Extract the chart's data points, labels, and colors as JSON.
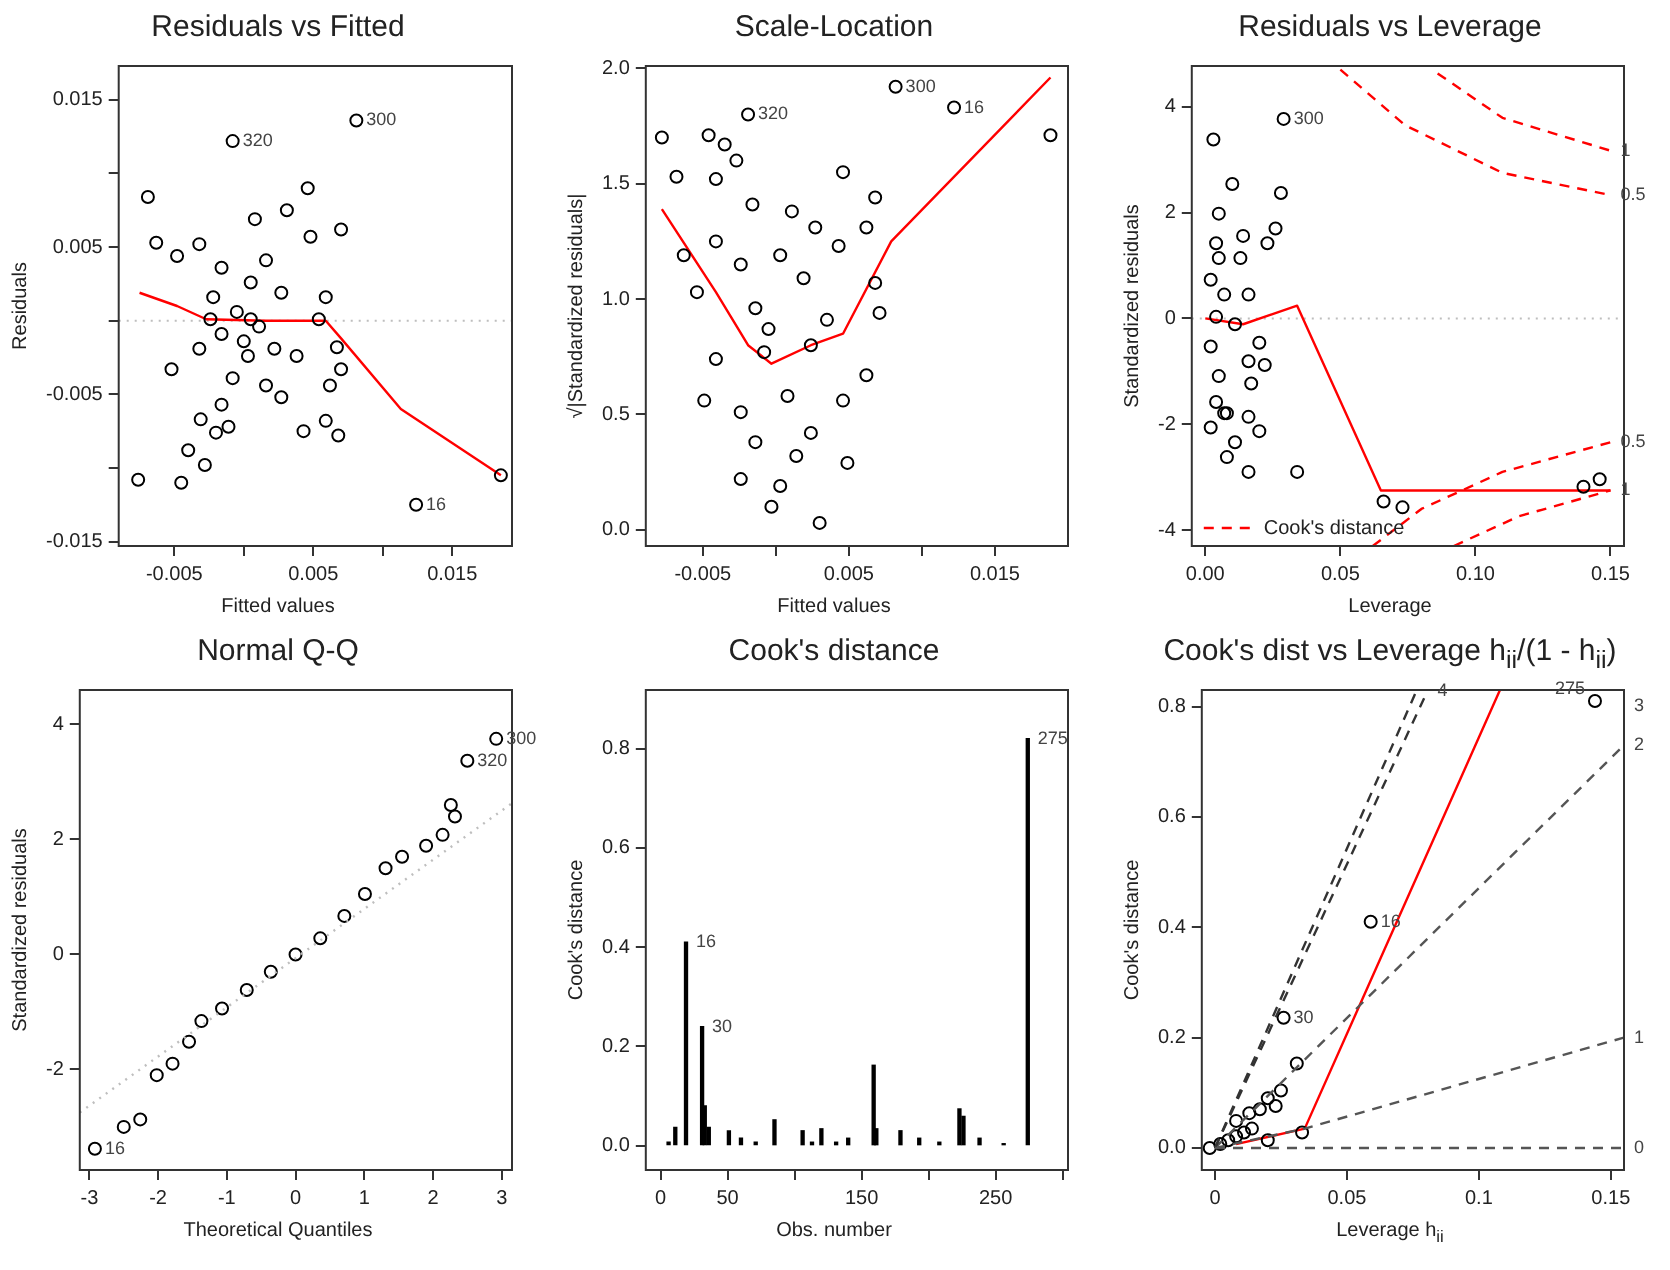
{
  "chart_data": [
    {
      "type": "scatter",
      "title": "Residuals vs Fitted",
      "xlabel": "Fitted values",
      "ylabel": "Residuals",
      "marker": "circle",
      "legend": false,
      "grid": false,
      "xlim": [
        -0.009,
        0.0193
      ],
      "xticks": [
        -0.005,
        {
          "value": 0,
          "label": null
        },
        0.005,
        {
          "value": 0.01,
          "label": null
        },
        0.015
      ],
      "ylim": [
        -0.0153,
        0.0173
      ],
      "yticks": [
        -0.015,
        {
          "value": -0.01,
          "label": null
        },
        -0.005,
        {
          "value": 0,
          "label": null
        },
        0.005,
        {
          "value": 0.01,
          "label": null
        },
        0.015
      ],
      "series": [
        {
          "color": "#000000",
          "x": [
            0.0081,
            -0.0008,
            -0.0069,
            0.0046,
            -0.0063,
            0.0031,
            0.0008,
            0.007,
            -0.0048,
            -0.0032,
            0.0048,
            -0.0016,
            0.0016,
            0.0005,
            -0.0022,
            0.0027,
            0.0059,
            -0.0005,
            0.0011,
            -0.0016,
            0.0054,
            -0.0032,
            0.0003,
            0.0022,
            0.0038,
            0.0067,
            -0.0052,
            -0.0008,
            0.0016,
            0.007,
            0.0062,
            -0.0016,
            0.0027,
            -0.0031,
            -0.0011,
            0.0043,
            0.0059,
            0.0068,
            -0.002,
            -0.004,
            -0.0028,
            -0.0045,
            -0.0076,
            0.0124,
            0.0185,
            0.0005,
            0,
            -0.0024
          ],
          "values": [
            0.0136,
            0.0122,
            0.0084,
            0.009,
            0.0053,
            0.0075,
            0.0069,
            0.0062,
            0.0044,
            0.0052,
            0.0057,
            0.0036,
            0.0041,
            0.0026,
            0.0016,
            0.0019,
            0.0016,
            0.0006,
            -0.0004,
            -0.0009,
            0.0001,
            -0.0019,
            -0.0024,
            -0.0019,
            -0.0024,
            -0.0018,
            -0.0033,
            -0.0039,
            -0.0044,
            -0.0033,
            -0.0044,
            -0.0057,
            -0.0052,
            -0.0067,
            -0.0072,
            -0.0075,
            -0.0068,
            -0.0078,
            -0.0076,
            -0.0088,
            -0.0098,
            -0.011,
            -0.0108,
            -0.0125,
            -0.0105,
            0.0001,
            -0.0014,
            0.0001
          ]
        },
        {
          "type": "line",
          "color": "#ff0000",
          "line_style": "solid",
          "marker": "none",
          "x": [
            -0.0075,
            -0.0048,
            -0.0027,
            0.0016,
            0.0059,
            0.007,
            0.0113,
            0.0185
          ],
          "values": [
            0.0019,
            0.001,
            0.0001,
            0,
            0,
            -0.0012,
            -0.006,
            -0.0105
          ]
        }
      ],
      "ref_lines": [
        {
          "axis": "y",
          "value": 0,
          "color": "#bebebe",
          "line_style": "dotted"
        }
      ],
      "annotations": [
        {
          "text": "300",
          "x": 0.0081,
          "y": 0.0136
        },
        {
          "text": "320",
          "x": -0.0008,
          "y": 0.0122
        },
        {
          "text": "16",
          "x": 0.0124,
          "y": -0.0125
        }
      ]
    },
    {
      "type": "scatter",
      "title": "Scale-Location",
      "xlabel": "Fitted values",
      "ylabel": "√|Standardized residuals|",
      "marker": "circle",
      "legend": false,
      "grid": false,
      "xlim": [
        -0.0089,
        0.02
      ],
      "xticks": [
        -0.005,
        {
          "value": 0,
          "label": null
        },
        0.005,
        {
          "value": 0.01,
          "label": null
        },
        0.015
      ],
      "ylim": [
        -0.07,
        2.01
      ],
      "yticks": [
        {
          "value": 0,
          "label": "0.0"
        },
        0.5,
        {
          "value": 1,
          "label": "1.0"
        },
        1.5,
        {
          "value": 2,
          "label": "2.0"
        }
      ],
      "series": [
        {
          "color": "#000000",
          "x": [
            0.0082,
            -0.0019,
            0.0122,
            0.0188,
            -0.0078,
            -0.0046,
            -0.0035,
            -0.0027,
            -0.0068,
            -0.0041,
            0.0046,
            0.0068,
            -0.0016,
            0.0011,
            0.0027,
            0.0043,
            0.0062,
            -0.0041,
            -0.0063,
            -0.0024,
            0.0003,
            0.0019,
            0.0068,
            -0.0054,
            0.0071,
            -0.0014,
            0.0035,
            -0.0041,
            -0.0008,
            0.0024,
            0.0062,
            -0.0049,
            -0.0024,
            0.0008,
            0.0046,
            -0.0014,
            0.0024,
            0.0049,
            -0.0024,
            0.0003,
            -0.0003,
            0.003,
            0.0014,
            -0.0005
          ],
          "values": [
            1.92,
            1.8,
            1.83,
            1.71,
            1.7,
            1.71,
            1.67,
            1.6,
            1.53,
            1.52,
            1.55,
            1.44,
            1.41,
            1.38,
            1.31,
            1.23,
            1.31,
            1.25,
            1.19,
            1.15,
            1.19,
            1.09,
            1.07,
            1.03,
            0.94,
            0.96,
            0.91,
            0.74,
            0.77,
            0.8,
            0.67,
            0.56,
            0.51,
            0.58,
            0.56,
            0.38,
            0.42,
            0.29,
            0.22,
            0.19,
            0.1,
            0.03,
            0.32,
            0.87
          ]
        },
        {
          "type": "line",
          "color": "#ff0000",
          "line_style": "solid",
          "marker": "none",
          "x": [
            -0.0078,
            -0.0041,
            -0.0019,
            -0.0003,
            0.0024,
            0.0046,
            0.0079,
            0.0188
          ],
          "values": [
            1.39,
            1.03,
            0.8,
            0.72,
            0.8,
            0.85,
            1.25,
            1.96
          ]
        }
      ],
      "annotations": [
        {
          "text": "300",
          "x": 0.0082,
          "y": 1.92
        },
        {
          "text": "320",
          "x": -0.0019,
          "y": 1.8
        },
        {
          "text": "16",
          "x": 0.0122,
          "y": 1.83
        }
      ]
    },
    {
      "type": "scatter",
      "title": "Residuals vs Leverage",
      "xlabel": "Leverage",
      "ylabel": "Standardized residuals",
      "marker": "circle",
      "legend": "bottom left",
      "grid": false,
      "xlim": [
        -0.005,
        0.155
      ],
      "xticks": [
        {
          "value": 0,
          "label": "0.00"
        },
        0.05,
        {
          "value": 0.1,
          "label": "0.10"
        },
        0.15
      ],
      "ylim": [
        -4.3,
        4.77
      ],
      "yticks": [
        -4,
        -2,
        0,
        2,
        4
      ],
      "series": [
        {
          "color": "#000000",
          "x": [
            0.029,
            0.003,
            0.01,
            0.028,
            0.005,
            0.004,
            0.014,
            0.026,
            0.023,
            0.013,
            0.002,
            0.007,
            0.016,
            0.004,
            0.011,
            0.002,
            0.02,
            0.016,
            0.022,
            0.005,
            0.017,
            0.004,
            0.008,
            0.016,
            0.02,
            0.002,
            0.011,
            0.008,
            0.016,
            0.034,
            0.066,
            0.073,
            0.14,
            0.146,
            0.005,
            0.007
          ],
          "values": [
            3.77,
            3.38,
            2.54,
            2.37,
            1.98,
            1.42,
            1.56,
            1.7,
            1.42,
            1.14,
            0.73,
            0.45,
            0.45,
            0.03,
            -0.11,
            -0.53,
            -0.46,
            -0.81,
            -0.88,
            -1.09,
            -1.23,
            -1.58,
            -1.79,
            -1.86,
            -2.13,
            -2.06,
            -2.34,
            -2.62,
            -2.9,
            -2.9,
            -3.46,
            -3.57,
            -3.18,
            -3.04,
            1.14,
            -1.79
          ]
        },
        {
          "type": "line",
          "color": "#ff0000",
          "line_style": "solid",
          "marker": "none",
          "x": [
            0,
            0.014,
            0.034,
            0.065,
            0.15
          ],
          "values": [
            0,
            -0.11,
            0.24,
            -3.25,
            -3.25
          ]
        },
        {
          "type": "line",
          "name": "Cook's distance",
          "color": "#ff0000",
          "line_style": "dashed",
          "marker": "none",
          "x": [
            0.086,
            0.11,
            0.15
          ],
          "values": [
            4.63,
            3.79,
            3.17
          ]
        },
        {
          "type": "line",
          "color": "#ff0000",
          "line_style": "dashed",
          "marker": "none",
          "x": [
            0.05,
            0.074,
            0.11,
            0.15
          ],
          "values": [
            4.7,
            3.65,
            2.75,
            2.33
          ]
        },
        {
          "type": "line",
          "color": "#ff0000",
          "line_style": "dashed",
          "marker": "none",
          "x": [
            0.062,
            0.08,
            0.11,
            0.15
          ],
          "values": [
            -4.3,
            -3.6,
            -2.9,
            -2.34
          ]
        },
        {
          "type": "line",
          "color": "#ff0000",
          "line_style": "dashed",
          "marker": "none",
          "x": [
            0.092,
            0.116,
            0.15
          ],
          "values": [
            -4.3,
            -3.74,
            -3.25
          ]
        }
      ],
      "ref_lines": [
        {
          "axis": "y",
          "value": 0,
          "color": "#bebebe",
          "line_style": "dotted"
        }
      ],
      "annotations": [
        {
          "text": "300",
          "x": 0.029,
          "y": 3.77
        },
        {
          "text": "1",
          "x": 0.15,
          "y": 3.17
        },
        {
          "text": "0.5",
          "x": 0.15,
          "y": 2.33
        },
        {
          "text": "0.5",
          "x": 0.15,
          "y": -2.34
        },
        {
          "text": "1",
          "x": 0.15,
          "y": -3.25
        }
      ]
    },
    {
      "type": "scatter",
      "title": "Normal Q-Q",
      "xlabel": "Theoretical Quantiles",
      "ylabel": "Standardized residuals",
      "marker": "circle",
      "legend": false,
      "grid": false,
      "xlim": [
        -3.14,
        3.15
      ],
      "xticks": [
        -3,
        -2,
        -1,
        0,
        1,
        2,
        3
      ],
      "ylim": [
        -3.75,
        4.6
      ],
      "yticks": [
        -2,
        0,
        2,
        4
      ],
      "series": [
        {
          "type": "line",
          "color": "#bebebe",
          "line_style": "dotted",
          "marker": "none",
          "x": [
            -3.14,
            3.15
          ],
          "values": [
            -2.75,
            2.63
          ]
        },
        {
          "color": "#000000",
          "x": [
            -2.92,
            -2.5,
            -2.26,
            -2.02,
            -1.79,
            -1.55,
            -1.37,
            -1.07,
            -0.71,
            -0.36,
            0,
            0.36,
            0.71,
            1.01,
            1.31,
            1.55,
            1.9,
            2.14,
            2.26,
            2.32,
            2.5,
            2.92
          ],
          "values": [
            -3.38,
            -3,
            -2.87,
            -2.1,
            -1.9,
            -1.52,
            -1.16,
            -0.94,
            -0.62,
            -0.3,
            0,
            0.28,
            0.67,
            1.05,
            1.5,
            1.7,
            1.89,
            2.08,
            2.6,
            2.4,
            3.37,
            3.75
          ]
        }
      ],
      "annotations": [
        {
          "text": "300",
          "x": 2.92,
          "y": 3.75
        },
        {
          "text": "320",
          "x": 2.5,
          "y": 3.37
        },
        {
          "text": "16",
          "x": -2.92,
          "y": -3.38
        }
      ]
    },
    {
      "type": "bar",
      "title": "Cook's distance",
      "xlabel": "Obs. number",
      "ylabel": "Cook's distance",
      "legend": false,
      "grid": false,
      "xlim": [
        -11,
        304
      ],
      "xticks": [
        0,
        50,
        {
          "value": 100,
          "label": null
        },
        150,
        {
          "value": 200,
          "label": null
        },
        250,
        {
          "value": 300,
          "label": null
        }
      ],
      "ylim": [
        -0.049,
        0.918
      ],
      "yticks": [
        {
          "value": 0,
          "label": "0.0"
        },
        0.2,
        0.4,
        0.6,
        0.8
      ],
      "series": [
        {
          "color": "#000000",
          "x": [
            6,
            11,
            19,
            31,
            33,
            36,
            51,
            60,
            71,
            85,
            106,
            113,
            120,
            131,
            140,
            159,
            161,
            179,
            193,
            208,
            223,
            226,
            238,
            256,
            274
          ],
          "values": [
            0.007,
            0.037,
            0.41,
            0.24,
            0.08,
            0.037,
            0.03,
            0.015,
            0.007,
            0.052,
            0.03,
            0.007,
            0.034,
            0.007,
            0.015,
            0.162,
            0.034,
            0.03,
            0.015,
            0.007,
            0.074,
            0.059,
            0.015,
            0.004,
            0.82
          ]
        }
      ],
      "annotations": [
        {
          "text": "16",
          "x": 19,
          "y": 0.41
        },
        {
          "text": "30",
          "x": 31,
          "y": 0.24
        },
        {
          "text": "275",
          "x": 274,
          "y": 0.82
        }
      ]
    },
    {
      "type": "scatter",
      "title": "Cook's dist vs Leverage  h$_{ii}$/(1 - h$_{ii}$)",
      "xlabel": "Leverage  h$_{ii}$",
      "ylabel": "Cook's distance",
      "marker": "circle",
      "legend": false,
      "grid": false,
      "xlim": [
        -0.005,
        0.155
      ],
      "xticks": [
        0,
        0.05,
        0.1,
        0.15
      ],
      "ylim": [
        -0.04,
        0.83
      ],
      "yticks": [
        {
          "value": 0,
          "label": "0.0"
        },
        0.2,
        0.4,
        0.6,
        0.8
      ],
      "series": [
        {
          "type": "line",
          "color": "#555555",
          "line_style": "dashed",
          "marker": "none",
          "x": [
            0,
            0.155
          ],
          "values": [
            0,
            0
          ]
        },
        {
          "type": "line",
          "color": "#333333",
          "line_style": "dashed",
          "marker": "none",
          "x": [
            0,
            0.0763
          ],
          "values": [
            0,
            0.828
          ]
        },
        {
          "type": "line",
          "color": "#333333",
          "line_style": "dashed",
          "marker": "none",
          "x": [
            0,
            0.0805
          ],
          "values": [
            0,
            0.828
          ]
        },
        {
          "type": "line",
          "color": "#555555",
          "line_style": "dashed",
          "marker": "none",
          "x": [
            0,
            0.155
          ],
          "values": [
            0,
            0.73
          ]
        },
        {
          "type": "line",
          "color": "#555555",
          "line_style": "dashed",
          "marker": "none",
          "x": [
            0,
            0.034,
            0.155
          ],
          "values": [
            0,
            0.035,
            0.2
          ]
        },
        {
          "color": "#000000",
          "x": [
            -0.002,
            0.002,
            0.005,
            0.008,
            0.011,
            0.014,
            0.008,
            0.013,
            0.017,
            0.02,
            0.025,
            0.023,
            0.031,
            0.026,
            0.033,
            0.02,
            0.059,
            0.144
          ],
          "values": [
            0,
            0.007,
            0.014,
            0.021,
            0.028,
            0.035,
            0.049,
            0.063,
            0.07,
            0.09,
            0.104,
            0.076,
            0.153,
            0.236,
            0.028,
            0.014,
            0.41,
            0.81
          ]
        },
        {
          "type": "line",
          "color": "#ff0000",
          "line_style": "solid",
          "marker": "none",
          "x": [
            0.008,
            0.034,
            0.108
          ],
          "values": [
            0.007,
            0.035,
            0.83
          ]
        }
      ],
      "annotations": [
        {
          "text": "275",
          "x": 0.144,
          "y": 0.81
        },
        {
          "text": "16",
          "x": 0.059,
          "y": 0.41
        },
        {
          "text": "30",
          "x": 0.026,
          "y": 0.236
        },
        {
          "text": "4",
          "x": 0.0805,
          "y": 0.828
        },
        {
          "text": "0",
          "x": 0.155,
          "y": 0
        },
        {
          "text": "1",
          "x": 0.155,
          "y": 0.2
        },
        {
          "text": "2",
          "x": 0.155,
          "y": 0.73
        },
        "3"
      ]
    }
  ]
}
